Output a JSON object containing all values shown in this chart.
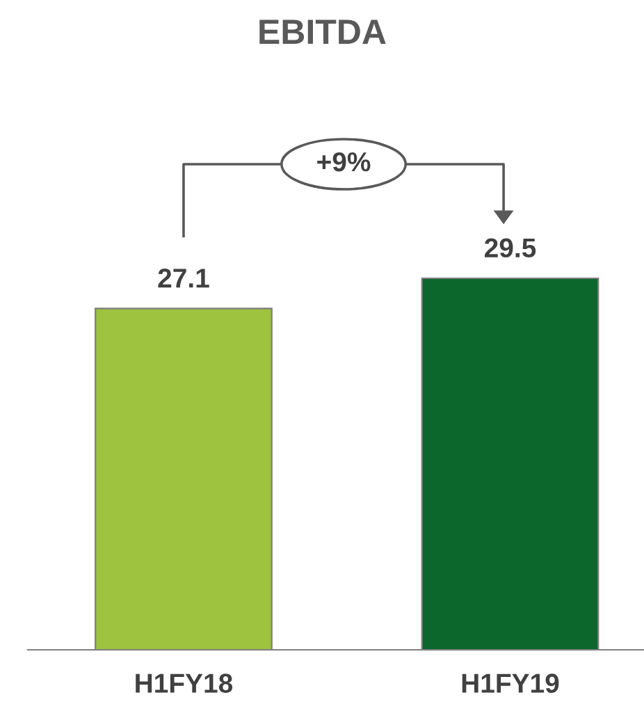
{
  "chart_data": {
    "type": "bar",
    "title": "EBITDA",
    "categories": [
      "H1FY18",
      "H1FY19"
    ],
    "values": [
      27.1,
      29.5
    ],
    "colors": [
      "#9dc33f",
      "#0b672c"
    ],
    "data_labels": true,
    "annotations": [
      "+9%"
    ]
  }
}
